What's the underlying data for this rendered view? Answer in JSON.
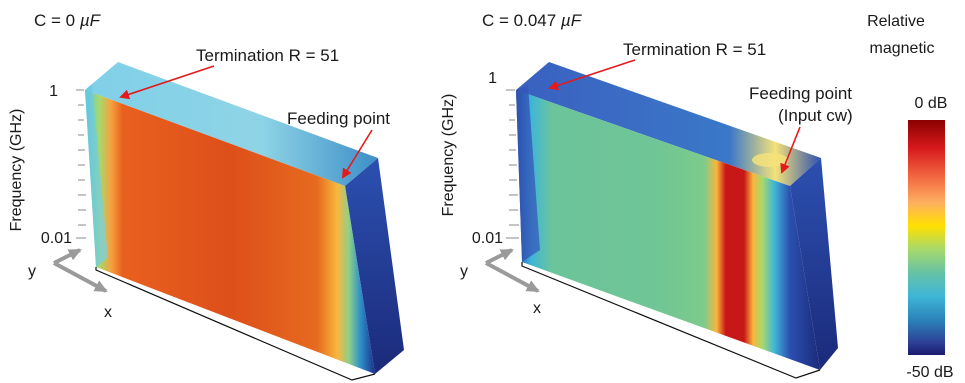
{
  "left_panel": {
    "title": "C = 0 ",
    "title_unit": "µF",
    "termination_label": "Termination R = 51",
    "feeding_label": "Feeding point",
    "y_axis_label": "Frequency (GHz)",
    "tick_top": "1",
    "tick_bottom": "0.01",
    "axis_y": "y",
    "axis_x": "x"
  },
  "right_panel": {
    "title": "C = 0.047 ",
    "title_unit": "µF",
    "termination_label": "Termination R = 51",
    "feeding_label_line1": "Feeding point",
    "feeding_label_line2": "(Input cw)",
    "y_axis_label": "Frequency (GHz)",
    "tick_top": "1",
    "tick_bottom": "0.01",
    "axis_y": "y",
    "axis_x": "x"
  },
  "colorbar": {
    "title_line1": "Relative",
    "title_line2": "magnetic",
    "top_label": "0 dB",
    "bottom_label": "-50 dB",
    "colors": [
      "#8b0000",
      "#d7191c",
      "#f46d43",
      "#fdae61",
      "#ffe000",
      "#a6d96a",
      "#66c2a5",
      "#3fb6d8",
      "#2b83ba",
      "#2c3e94",
      "#1a1a6e"
    ]
  },
  "colors": {
    "arrow": "#e41a1c",
    "axis_arrow": "#9a9a9a"
  }
}
